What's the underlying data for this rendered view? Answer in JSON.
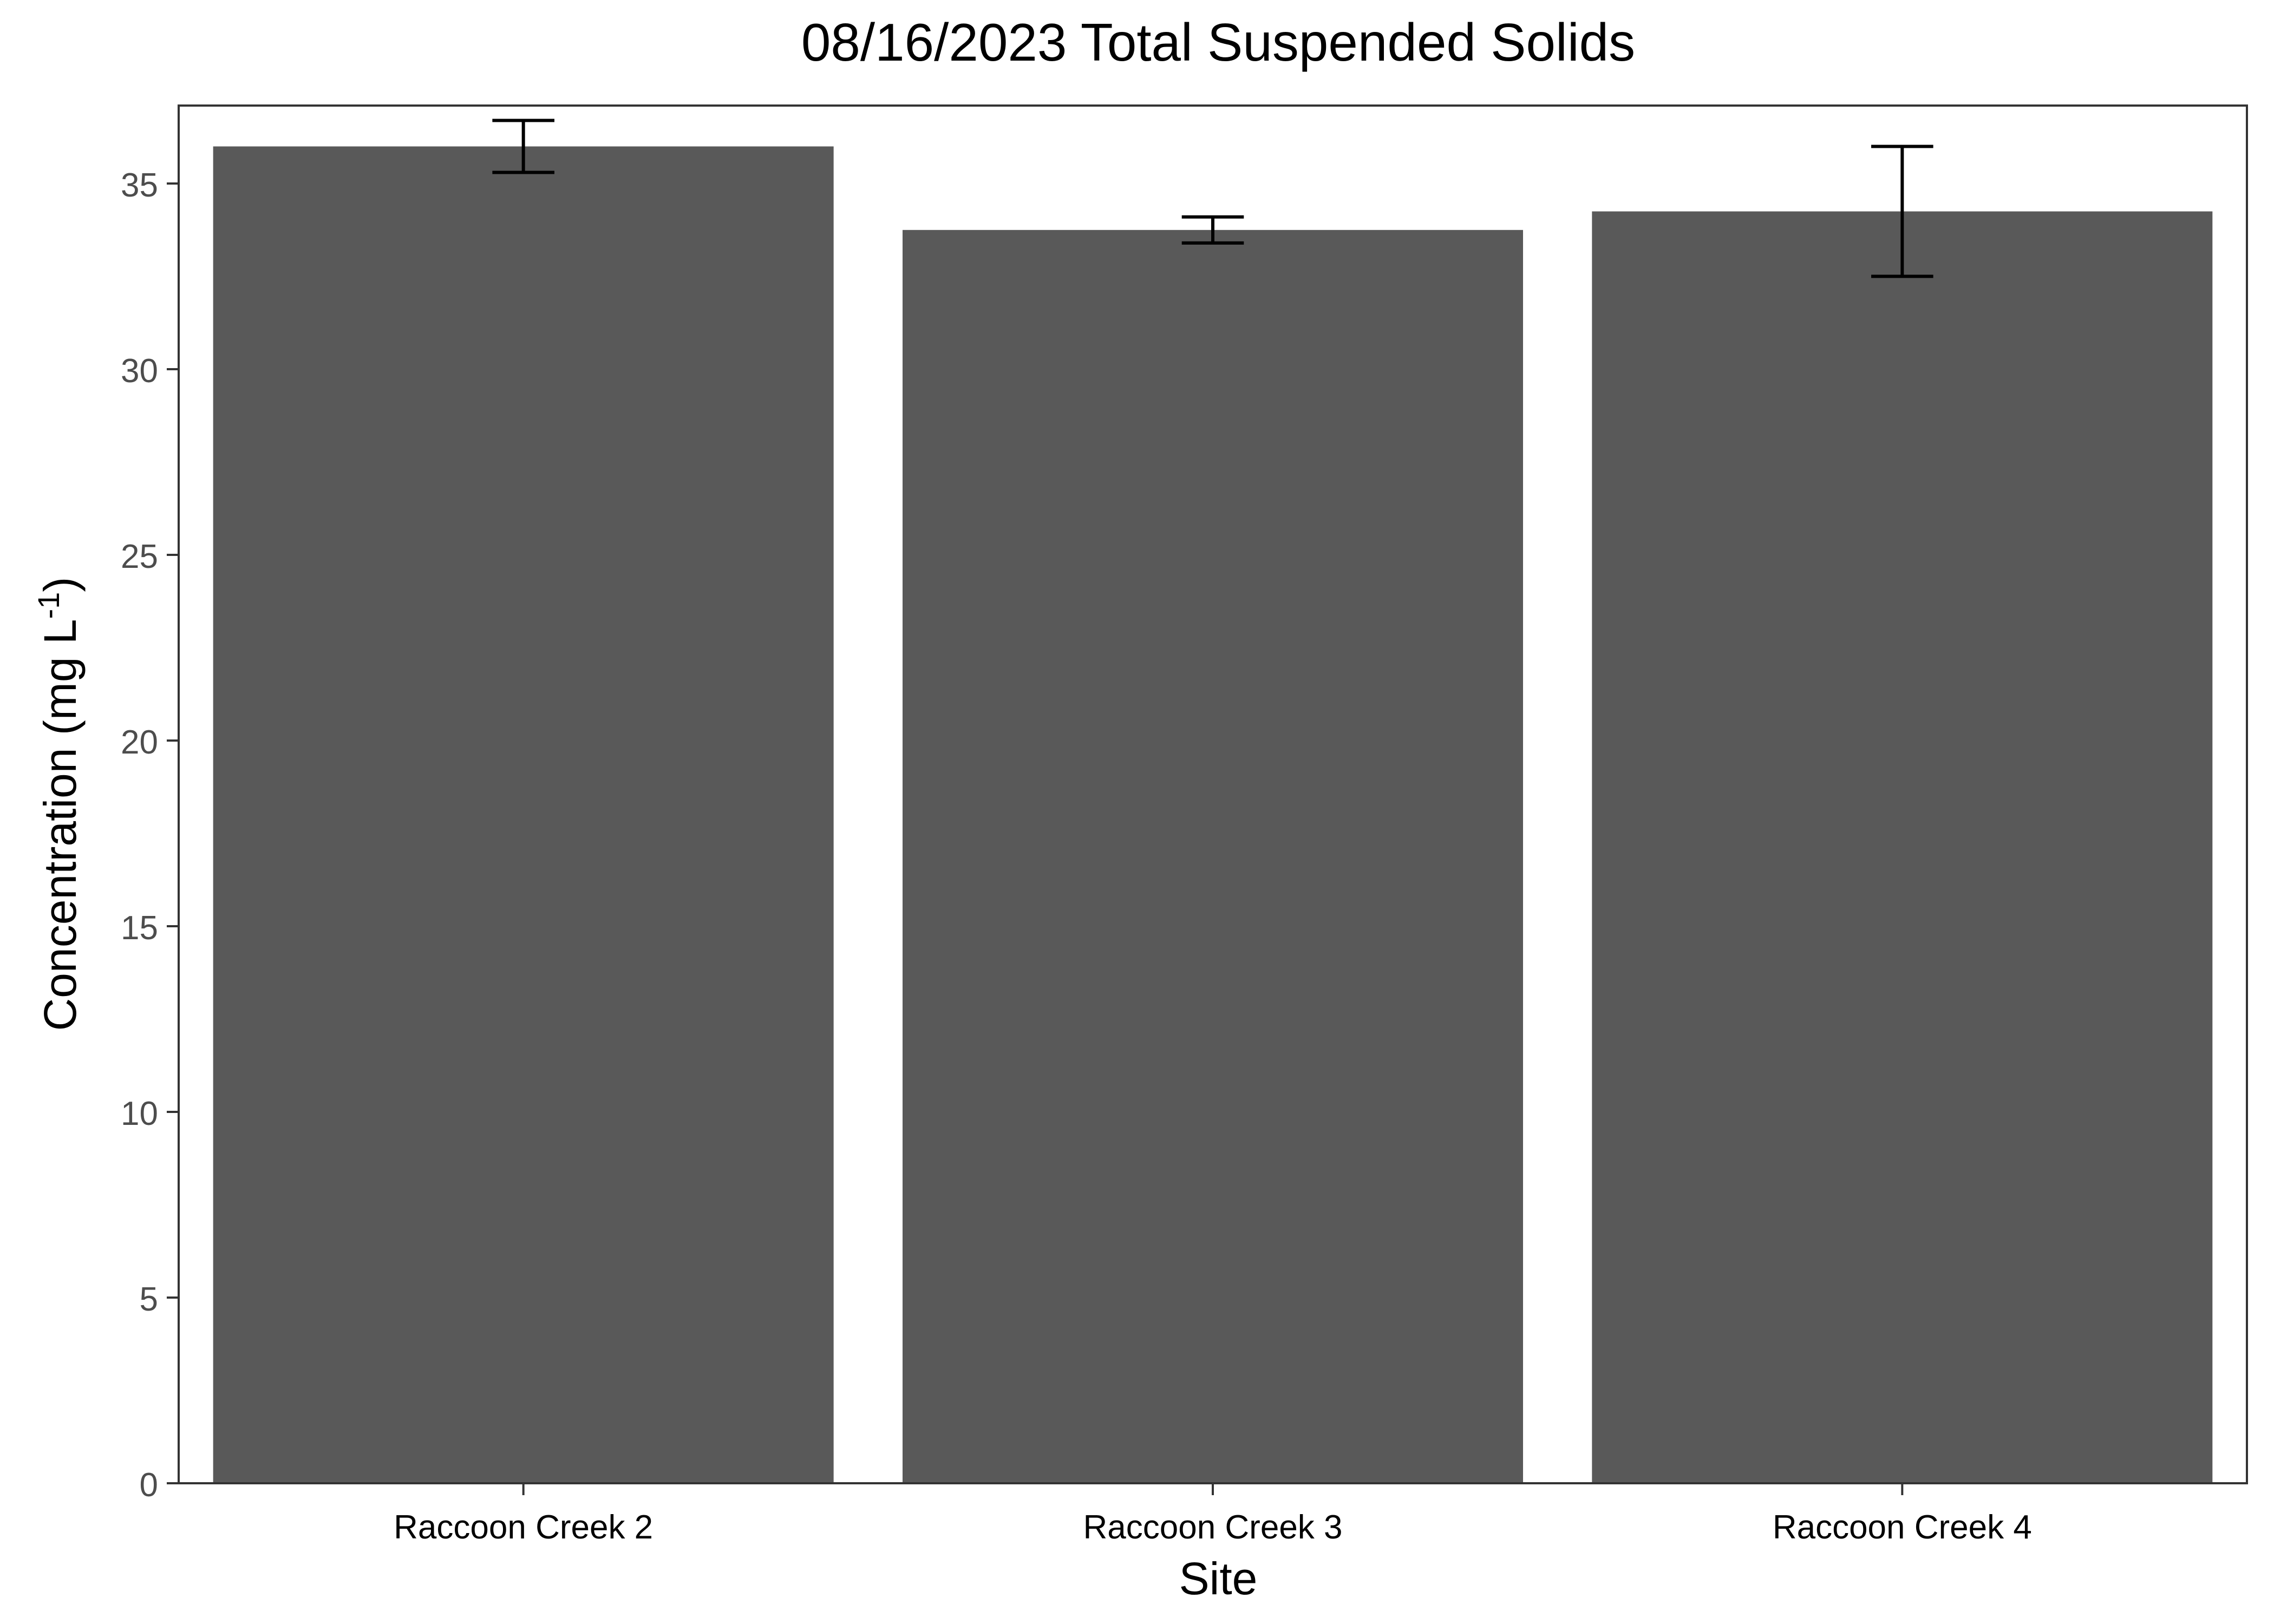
{
  "chart_data": {
    "type": "bar",
    "title": "08/16/2023 Total Suspended Solids",
    "xlabel": "Site",
    "ylabel": {
      "prefix": "Concentration (mg L",
      "superscript": "-1",
      "suffix": ")"
    },
    "categories": [
      "Raccoon Creek 2",
      "Raccoon Creek 3",
      "Raccoon Creek 4"
    ],
    "values": [
      36.0,
      33.75,
      34.25
    ],
    "error_low": [
      35.3,
      33.4,
      32.5
    ],
    "error_high": [
      36.7,
      34.1,
      36.0
    ],
    "ylim": [
      0,
      37.1
    ],
    "yticks": [
      0,
      5,
      10,
      15,
      20,
      25,
      30,
      35
    ],
    "grid": false,
    "legend": "none",
    "colors": {
      "bar": "#595959",
      "error_bar": "#000000",
      "panel_border": "#333333",
      "tick_label": "#4d4d4d",
      "title": "#000000"
    }
  }
}
